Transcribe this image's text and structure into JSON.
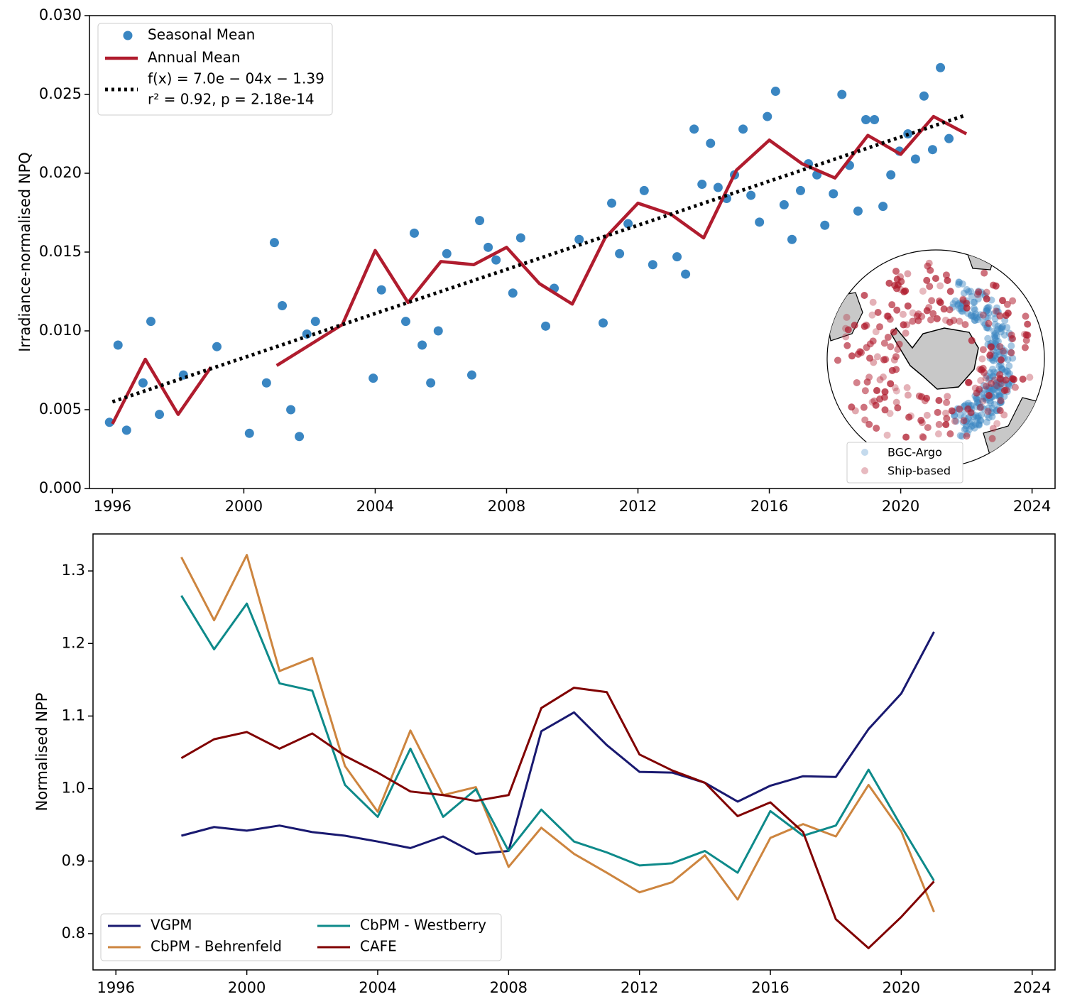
{
  "chart_data": [
    {
      "type": "scatter",
      "y_label": "Irradiance-normalised NPQ",
      "xlim": [
        1995.3,
        2024.7
      ],
      "xticks": [
        1996,
        2000,
        2004,
        2008,
        2012,
        2016,
        2020,
        2024
      ],
      "ylim": [
        0,
        0.03
      ],
      "yticks": [
        {
          "value": 0,
          "label": "0.000"
        },
        {
          "value": 0.005,
          "label": "0.005"
        },
        {
          "value": 0.01,
          "label": "0.010"
        },
        {
          "value": 0.015,
          "label": "0.015"
        },
        {
          "value": 0.02,
          "label": "0.020"
        },
        {
          "value": 0.025,
          "label": "0.025"
        },
        {
          "value": 0.03,
          "label": "0.030"
        }
      ],
      "legend": "upper left",
      "series": [
        {
          "name": "Seasonal Mean",
          "type": "scatter",
          "color": "#3a86c2",
          "x": [
            1995.91,
            1996.17,
            1996.43,
            1996.93,
            1997.17,
            1997.43,
            1998.16,
            1999.18,
            2000.17,
            2000.69,
            2000.93,
            2001.17,
            2001.43,
            2001.69,
            2001.92,
            2002.18,
            2003.94,
            2004.19,
            2004.93,
            2005.19,
            2005.43,
            2005.69,
            2005.92,
            2006.18,
            2006.94,
            2007.18,
            2007.44,
            2007.68,
            2008.19,
            2008.43,
            2009.19,
            2009.45,
            2010.21,
            2010.94,
            2011.2,
            2011.44,
            2011.7,
            2012.19,
            2012.45,
            2013.19,
            2013.45,
            2013.71,
            2013.95,
            2014.21,
            2014.44,
            2014.7,
            2014.94,
            2015.2,
            2015.44,
            2015.7,
            2015.94,
            2016.19,
            2016.45,
            2016.69,
            2016.95,
            2017.19,
            2017.45,
            2017.69,
            2017.95,
            2018.21,
            2018.44,
            2018.7,
            2018.94,
            2019.2,
            2019.46,
            2019.7,
            2019.96,
            2020.22,
            2020.45,
            2020.71,
            2020.97,
            2021.21,
            2021.47
          ],
          "values": [
            0.0042,
            0.0091,
            0.0037,
            0.0067,
            0.0106,
            0.0047,
            0.0072,
            0.009,
            0.0035,
            0.0067,
            0.0156,
            0.0116,
            0.005,
            0.0033,
            0.0098,
            0.0106,
            0.007,
            0.0126,
            0.0106,
            0.0162,
            0.0091,
            0.0067,
            0.01,
            0.0149,
            0.0072,
            0.017,
            0.0153,
            0.0145,
            0.0124,
            0.0159,
            0.0103,
            0.0127,
            0.0158,
            0.0105,
            0.0181,
            0.0149,
            0.0168,
            0.0189,
            0.0142,
            0.0147,
            0.0136,
            0.0228,
            0.0193,
            0.0219,
            0.0191,
            0.0184,
            0.0199,
            0.0228,
            0.0186,
            0.0169,
            0.0236,
            0.0252,
            0.018,
            0.0158,
            0.0189,
            0.0206,
            0.0199,
            0.0167,
            0.0187,
            0.025,
            0.0205,
            0.0176,
            0.0234,
            0.0234,
            0.0179,
            0.0199,
            0.0214,
            0.0225,
            0.0209,
            0.0249,
            0.0215,
            0.0267,
            0.0222
          ]
        },
        {
          "name": "Annual Mean",
          "type": "line",
          "color": "#b01c2e",
          "x": [
            1996,
            1997,
            1998,
            1999,
            2000,
            2001,
            2002,
            2003,
            2004,
            2005,
            2006,
            2007,
            2008,
            2009,
            2010,
            2011,
            2012,
            2013,
            2014,
            2015,
            2016,
            2017,
            2018,
            2019,
            2020,
            2021,
            2022
          ],
          "values": [
            0.0041,
            0.0082,
            0.0047,
            0.0077,
            null,
            0.0078,
            0.0091,
            0.0104,
            0.0151,
            0.0118,
            0.0144,
            0.0142,
            0.0153,
            0.013,
            0.0117,
            0.0159,
            0.0181,
            0.0174,
            0.0159,
            0.0202,
            0.0221,
            0.0206,
            0.0197,
            0.0224,
            0.0212,
            0.0236,
            0.0225
          ]
        },
        {
          "name_lines": [
            "f(x) = 7.0e − 04x − 1.39",
            "r² = 0.92, p = 2.18e-14"
          ],
          "type": "trend",
          "color": "#000000",
          "linestyle": "dotted",
          "x": [
            1996,
            2022
          ],
          "values": [
            0.0055,
            0.0237
          ]
        }
      ],
      "inset": {
        "legend": [
          {
            "name": "BGC-Argo",
            "color": "#3a86c2"
          },
          {
            "name": "Ship-based",
            "color": "#b01c2e"
          }
        ]
      }
    },
    {
      "type": "line",
      "y_label": "Normalised NPP",
      "xlim": [
        1995.3,
        2024.7
      ],
      "xticks": [
        1996,
        2000,
        2004,
        2008,
        2012,
        2016,
        2020,
        2024
      ],
      "ylim": [
        0.75,
        1.351
      ],
      "yticks": [
        0.8,
        0.9,
        {
          "value": 1,
          "label": "1.0"
        },
        1.1,
        1.2,
        1.3
      ],
      "legend": "lower left",
      "x": [
        1998,
        1999,
        2000,
        2001,
        2002,
        2003,
        2004,
        2005,
        2006,
        2007,
        2008,
        2009,
        2010,
        2011,
        2012,
        2013,
        2014,
        2015,
        2016,
        2017,
        2018,
        2019,
        2020,
        2021
      ],
      "series": [
        {
          "name": "VGPM",
          "color": "#191970",
          "values": [
            0.935,
            0.947,
            0.942,
            0.949,
            0.94,
            0.935,
            0.927,
            0.918,
            0.934,
            0.91,
            0.914,
            1.079,
            1.105,
            1.06,
            1.023,
            1.022,
            1.008,
            0.982,
            1.004,
            1.017,
            1.016,
            1.082,
            1.131,
            1.216
          ]
        },
        {
          "name": "CbPM - Behrenfeld",
          "color": "#cd853f",
          "values": [
            1.319,
            1.232,
            1.322,
            1.162,
            1.18,
            1.031,
            0.968,
            1.08,
            0.991,
            1.002,
            0.892,
            0.946,
            0.91,
            0.884,
            0.857,
            0.871,
            0.908,
            0.847,
            0.932,
            0.951,
            0.934,
            1.005,
            0.941,
            0.83
          ]
        },
        {
          "name": "CbPM - Westberry",
          "color": "#0e8a8a",
          "values": [
            1.266,
            1.192,
            1.255,
            1.145,
            1.135,
            1.005,
            0.961,
            1.055,
            0.961,
            0.999,
            0.914,
            0.971,
            0.927,
            0.912,
            0.894,
            0.897,
            0.914,
            0.884,
            0.969,
            0.935,
            0.949,
            1.026,
            0.948,
            0.873
          ]
        },
        {
          "name": "CAFE",
          "color": "#800000",
          "values": [
            1.042,
            1.068,
            1.078,
            1.055,
            1.076,
            1.045,
            1.022,
            0.996,
            0.991,
            0.983,
            0.991,
            1.111,
            1.139,
            1.133,
            1.047,
            1.025,
            1.008,
            0.962,
            0.981,
            0.94,
            0.82,
            0.78,
            0.823,
            0.872
          ]
        }
      ]
    }
  ]
}
